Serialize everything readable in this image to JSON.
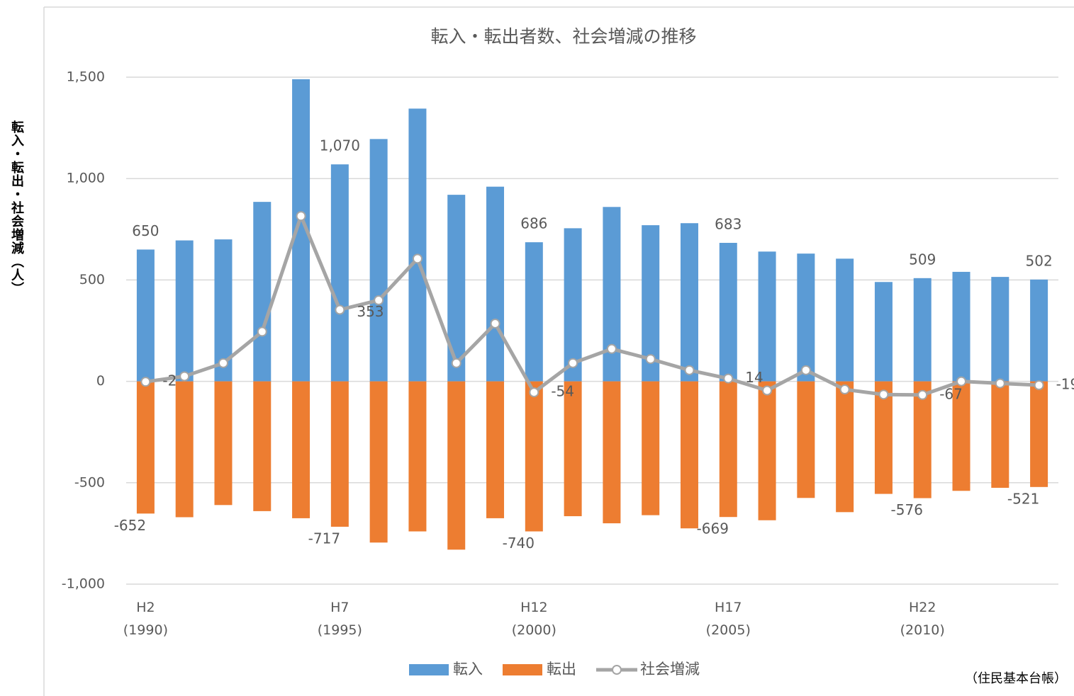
{
  "chart_data": {
    "type": "bar-line",
    "title": "転入・転出者数、社会増減の推移",
    "y_label": "転入・転出・社会増減（人）",
    "source": "（住民基本台帳）",
    "categories": [
      "H2\n(1990)",
      null,
      null,
      null,
      null,
      "H7\n(1995)",
      null,
      null,
      null,
      null,
      "H12\n(2000)",
      null,
      null,
      null,
      null,
      "H17\n(2005)",
      null,
      null,
      null,
      null,
      "H22\n(2010)",
      null,
      null,
      null
    ],
    "ylim": [
      -1000,
      1500
    ],
    "yticks": [
      {
        "value": -1000,
        "label": "-1,000"
      },
      -500,
      0,
      500,
      {
        "value": 1000,
        "label": "1,000"
      },
      {
        "value": 1500,
        "label": "1,500"
      }
    ],
    "grid": true,
    "series": [
      {
        "name": "転入",
        "kind": "bar",
        "color": "#5b9bd5",
        "values": [
          650,
          695,
          700,
          885,
          1490,
          1070,
          1195,
          1345,
          920,
          960,
          686,
          755,
          860,
          770,
          780,
          683,
          640,
          630,
          605,
          490,
          509,
          540,
          515,
          502
        ],
        "value_labels": [
          "650",
          null,
          null,
          null,
          null,
          "1,070",
          null,
          null,
          null,
          null,
          "686",
          null,
          null,
          null,
          null,
          "683",
          null,
          null,
          null,
          null,
          "509",
          null,
          null,
          "502"
        ]
      },
      {
        "name": "転出",
        "kind": "bar",
        "color": "#ed7d31",
        "values": [
          -652,
          -670,
          -610,
          -640,
          -675,
          -717,
          -795,
          -740,
          -830,
          -675,
          -740,
          -665,
          -700,
          -660,
          -725,
          -669,
          -685,
          -575,
          -645,
          -555,
          -576,
          -540,
          -525,
          -521
        ],
        "value_labels": [
          "-652",
          null,
          null,
          null,
          null,
          "-717",
          null,
          null,
          null,
          null,
          "-740",
          null,
          null,
          null,
          null,
          "-669",
          null,
          null,
          null,
          null,
          "-576",
          null,
          null,
          "-521"
        ]
      },
      {
        "name": "社会増減",
        "kind": "line",
        "color": "#a5a5a5",
        "values": [
          -2,
          25,
          90,
          245,
          815,
          353,
          400,
          605,
          90,
          285,
          -54,
          90,
          160,
          110,
          55,
          14,
          -45,
          55,
          -40,
          -65,
          -67,
          0,
          -10,
          -19
        ],
        "value_labels": [
          "-2",
          null,
          null,
          null,
          null,
          "353",
          null,
          null,
          null,
          null,
          "-54",
          null,
          null,
          null,
          null,
          "14",
          null,
          null,
          null,
          null,
          "-67",
          null,
          null,
          "-19"
        ]
      }
    ]
  }
}
